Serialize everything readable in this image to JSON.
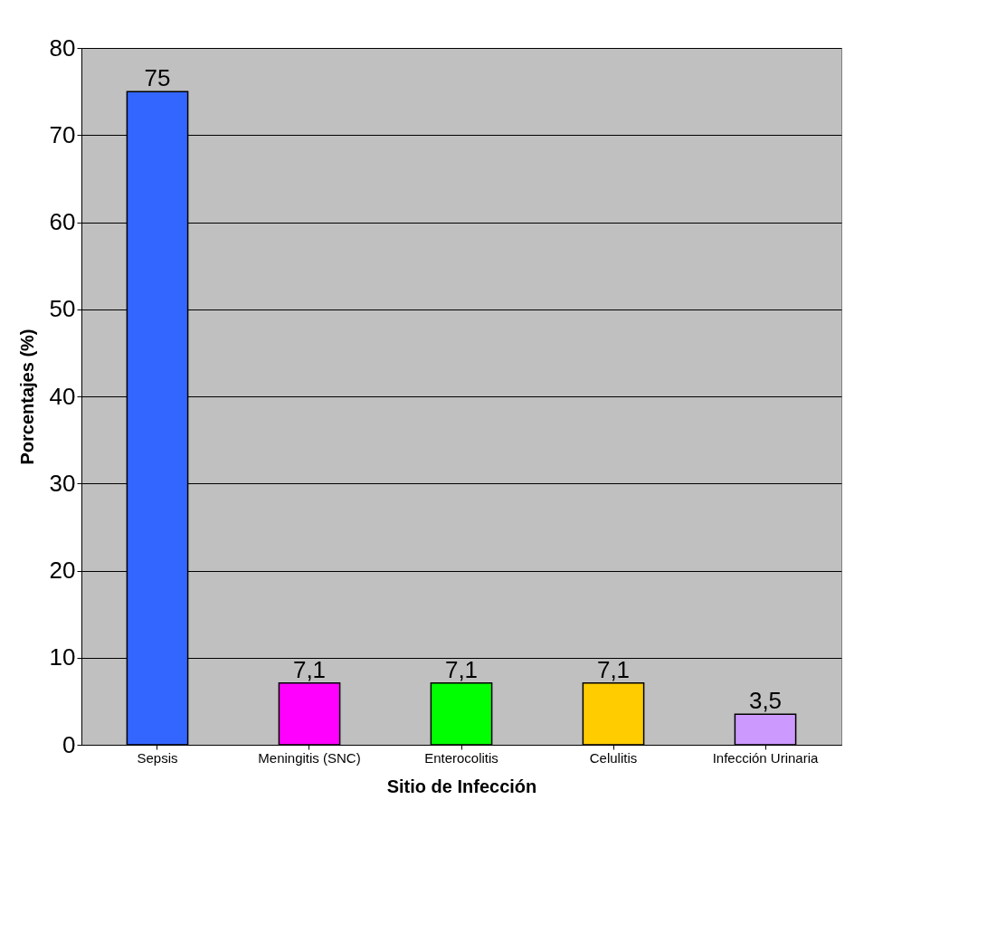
{
  "chart_data": {
    "type": "bar",
    "xlabel": "Sitio de Infección",
    "ylabel": "Porcentajes (%)",
    "categories": [
      "Sepsis",
      "Meningitis (SNC)",
      "Enterocolitis",
      "Celulitis",
      "Infección Urinaria"
    ],
    "values": [
      75,
      7.1,
      7.1,
      7.1,
      3.5
    ],
    "colors": [
      "#3366ff",
      "#ff00ff",
      "#00ff00",
      "#ffcc00",
      "#cc99ff"
    ],
    "value_labels": [
      "75",
      "7,1",
      "7,1",
      "7,1",
      "3,5"
    ],
    "ylim": [
      0,
      80
    ],
    "yticks": [
      0,
      10,
      20,
      30,
      40,
      50,
      60,
      70,
      80
    ],
    "grid": "y"
  }
}
